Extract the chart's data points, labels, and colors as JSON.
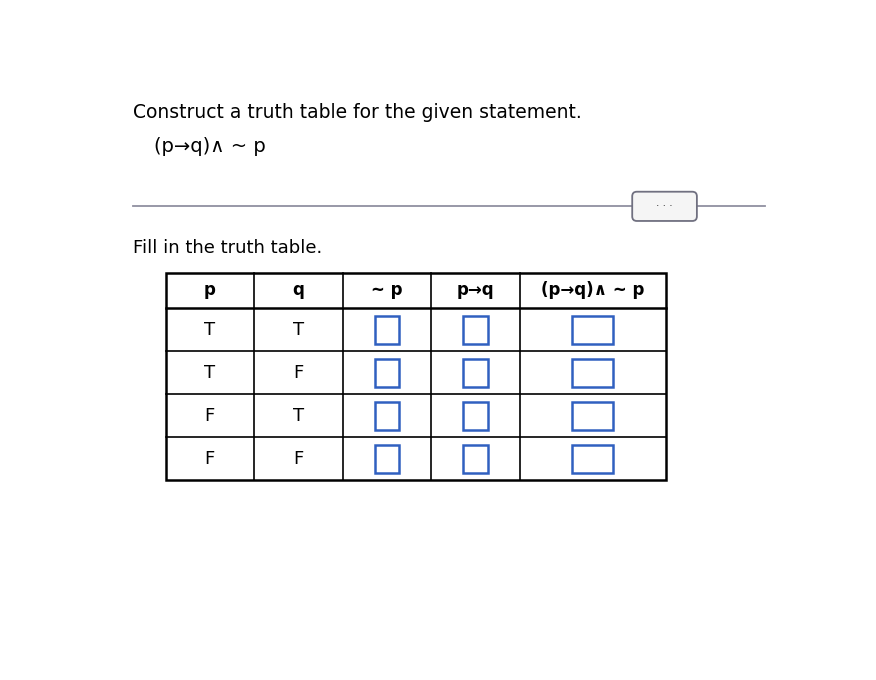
{
  "title": "Construct a truth table for the given statement.",
  "subtitle": "(p→q)∧ ~ p",
  "fill_label": "Fill in the truth table.",
  "title_fontsize": 13.5,
  "subtitle_fontsize": 14,
  "fill_fontsize": 13,
  "bg_color": "#ffffff",
  "table_header": [
    "p",
    "q",
    "~p",
    "p→q",
    "(p→q)∧~p"
  ],
  "table_rows": [
    [
      "T",
      "T"
    ],
    [
      "T",
      "F"
    ],
    [
      "F",
      "T"
    ],
    [
      "F",
      "F"
    ]
  ],
  "black_color": "#000000",
  "blue_box_color": "#3060C0",
  "separator_color": "#9090a0"
}
